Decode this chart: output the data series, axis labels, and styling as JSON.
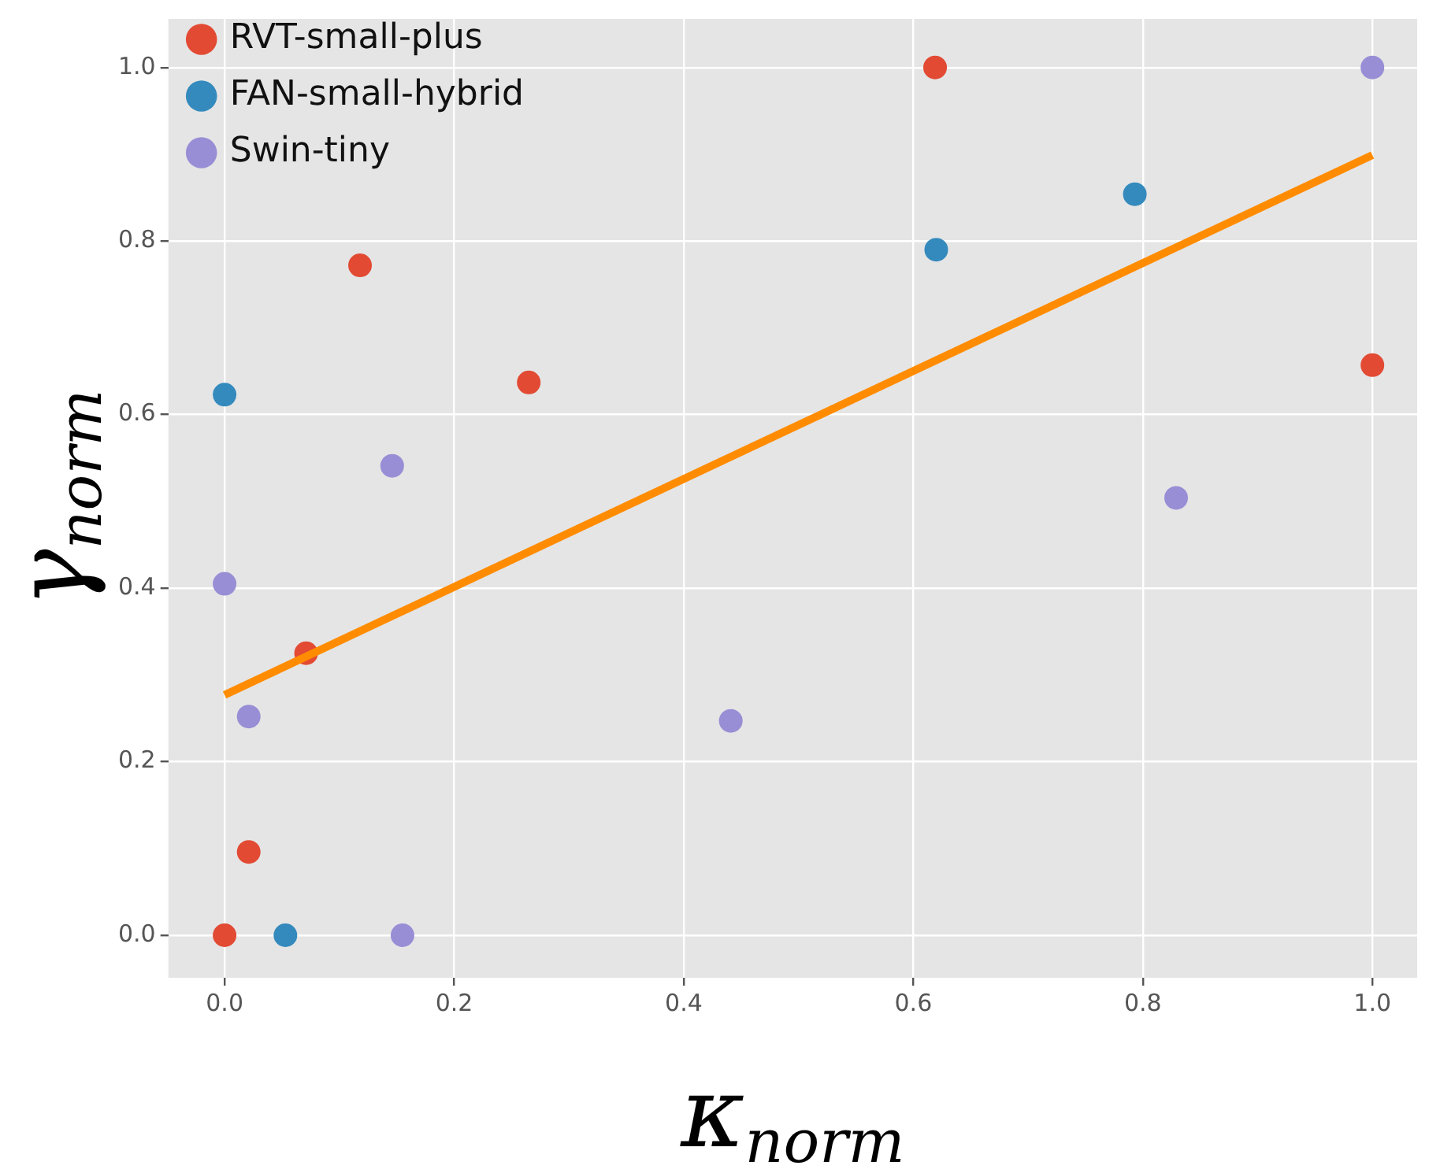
{
  "chart_data": {
    "type": "scatter",
    "xlabel": "κ$_{norm}$",
    "ylabel": "γ$_{norm}$",
    "xlim": [
      -0.049,
      1.039
    ],
    "ylim": [
      -0.049,
      1.056
    ],
    "xticks": [
      {
        "value": 0,
        "label": "0.0"
      },
      {
        "value": 0.2,
        "label": "0.2"
      },
      {
        "value": 0.4,
        "label": "0.4"
      },
      {
        "value": 0.6,
        "label": "0.6"
      },
      {
        "value": 0.8,
        "label": "0.8"
      },
      {
        "value": 1,
        "label": "1.0"
      }
    ],
    "yticks": [
      {
        "value": 0,
        "label": "0.0"
      },
      {
        "value": 0.2,
        "label": "0.2"
      },
      {
        "value": 0.4,
        "label": "0.4"
      },
      {
        "value": 0.6,
        "label": "0.6"
      },
      {
        "value": 0.8,
        "label": "0.8"
      },
      {
        "value": 1,
        "label": "1.0"
      }
    ],
    "grid": true,
    "legend": "top left",
    "marker": "circle",
    "series": [
      {
        "name": "RVT-small-plus",
        "color": "#e24a33",
        "x": [
          0.619,
          0.118,
          0.265,
          0.071,
          0.021,
          0,
          1.0
        ],
        "values": [
          1.0,
          0.772,
          0.637,
          0.325,
          0.096,
          0,
          0.657
        ]
      },
      {
        "name": "FAN-small-hybrid",
        "color": "#348abd",
        "x": [
          0,
          0.62,
          0.793,
          0.053
        ],
        "values": [
          0.623,
          0.79,
          0.854,
          0
        ]
      },
      {
        "name": "Swin-tiny",
        "color": "#988ed5",
        "x": [
          1.0,
          0.146,
          0,
          0.021,
          0.441,
          0.829,
          0.155
        ],
        "values": [
          1.0,
          0.541,
          0.405,
          0.252,
          0.247,
          0.504,
          0
        ]
      },
      {
        "type": "line",
        "marker": "none",
        "color": "#ff8c00",
        "x": [
          0,
          1.0
        ],
        "values": [
          0.277,
          0.899
        ]
      }
    ]
  }
}
